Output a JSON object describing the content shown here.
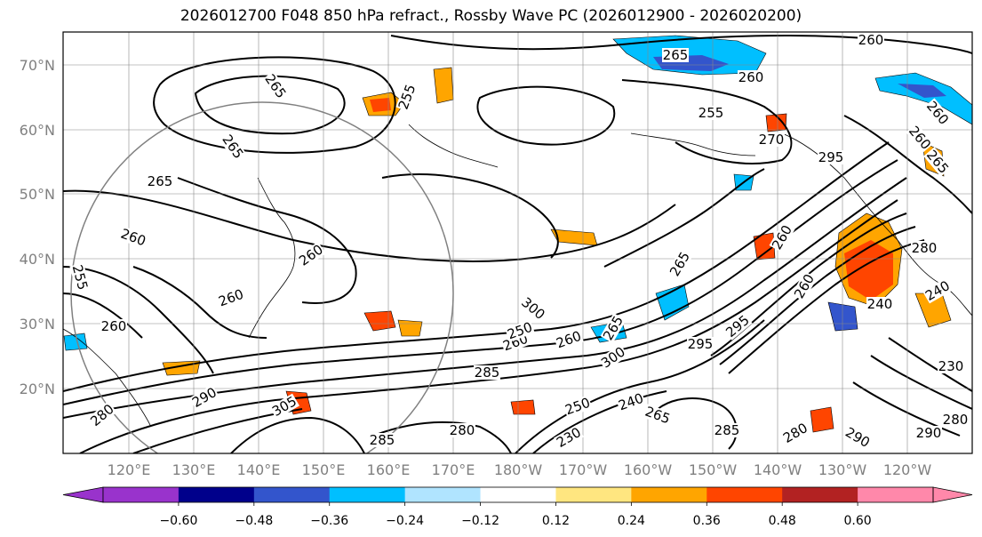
{
  "title": "2026012700 F048 850 hPa refract., Rossby Wave PC (2026012900 - 2026020200)",
  "map": {
    "lat_ticks": [
      "70°N",
      "60°N",
      "50°N",
      "40°N",
      "30°N",
      "20°N"
    ],
    "lon_ticks": [
      "120°E",
      "130°E",
      "140°E",
      "150°E",
      "160°E",
      "170°E",
      "180°W",
      "170°W",
      "160°W",
      "150°W",
      "140°W",
      "130°W",
      "120°W"
    ],
    "contour_labels": [
      "265",
      "255",
      "265",
      "265",
      "260",
      "260",
      "260",
      "255",
      "260",
      "265",
      "260",
      "255",
      "260",
      "260",
      "260",
      "265",
      "265",
      "270",
      "260",
      "265",
      "260",
      "260",
      "240",
      "285",
      "295",
      "265",
      "285",
      "280",
      "280",
      "240",
      "230",
      "280",
      "295",
      "295",
      "290",
      "305",
      "250",
      "280",
      "300",
      "290",
      "260",
      "240",
      "230",
      "250",
      "280",
      "300",
      "290",
      "285"
    ],
    "circle_color": "#808080"
  },
  "colorbar": {
    "colors": [
      "#9933cc",
      "#00008b",
      "#3355cc",
      "#00bfff",
      "#b0e4ff",
      "#ffffff",
      "#ffe680",
      "#ffa500",
      "#ff4500",
      "#b22222",
      "#ff88aa"
    ],
    "tick_labels": [
      "−0.60",
      "−0.48",
      "−0.36",
      "−0.24",
      "−0.12",
      "0.12",
      "0.24",
      "0.36",
      "0.48",
      "0.60"
    ]
  }
}
